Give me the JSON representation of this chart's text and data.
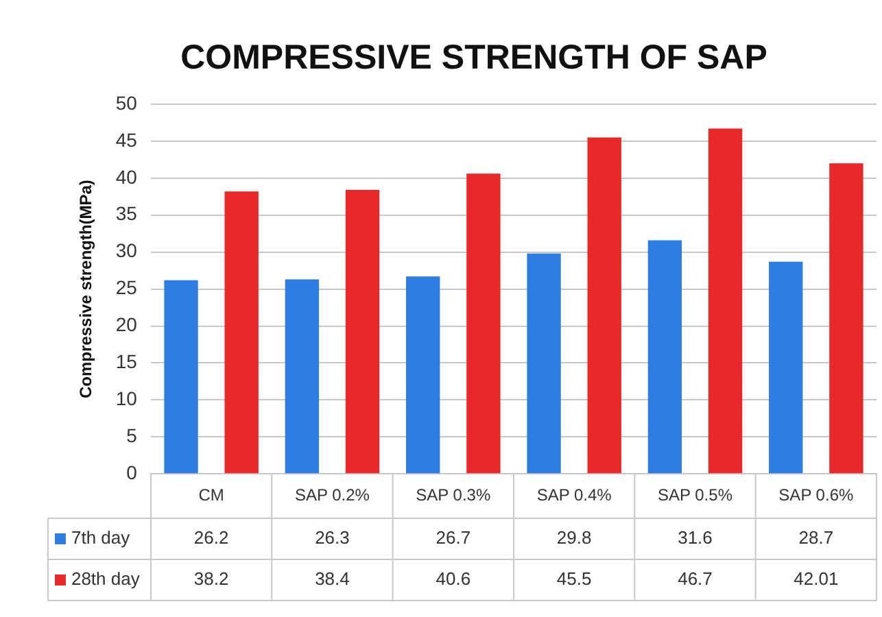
{
  "chart_data": {
    "type": "bar",
    "title": "COMPRESSIVE STRENGTH OF SAP",
    "ylabel": "Compressive strength(MPa)",
    "categories": [
      "CM",
      "SAP 0.2%",
      "SAP 0.3%",
      "SAP 0.4%",
      "SAP 0.5%",
      "SAP 0.6%"
    ],
    "series": [
      {
        "name": "7th day",
        "color": "#2e7de0",
        "values": [
          26.2,
          26.3,
          26.7,
          29.8,
          31.6,
          28.7
        ]
      },
      {
        "name": "28th day",
        "color": "#e8282a",
        "values": [
          38.2,
          38.4,
          40.6,
          45.5,
          46.7,
          42.01
        ]
      }
    ],
    "ylim": [
      0,
      50
    ],
    "yticks": [
      0,
      5,
      10,
      15,
      20,
      25,
      30,
      35,
      40,
      45,
      50
    ],
    "grid": "y",
    "legend": "bottom",
    "data_labels": true
  }
}
